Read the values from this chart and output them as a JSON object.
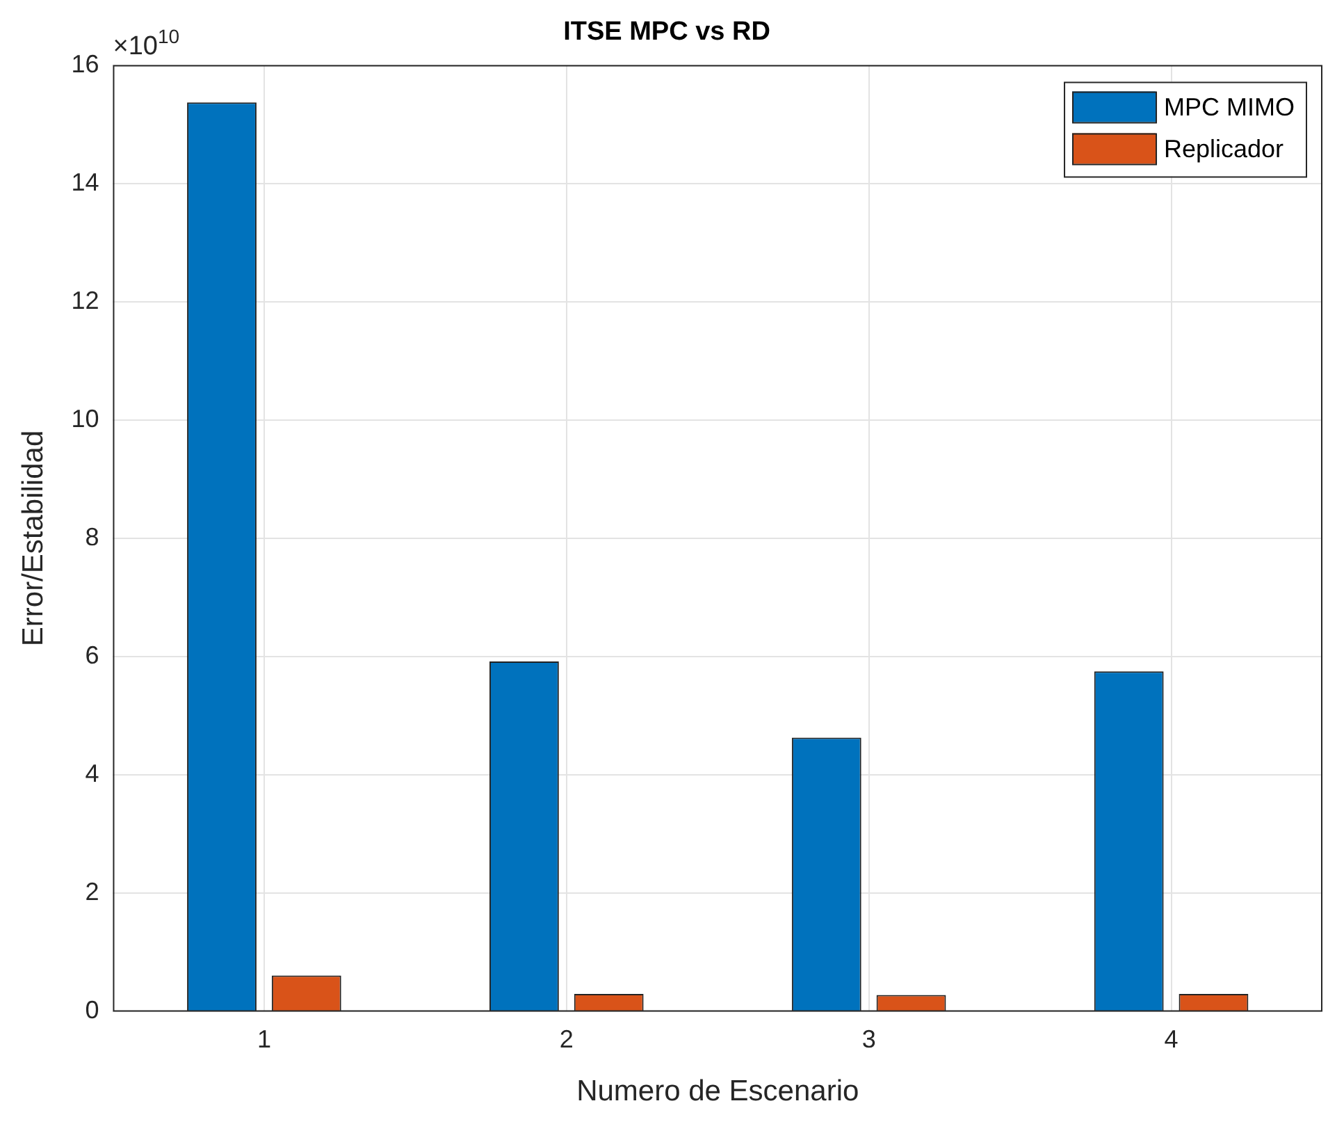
{
  "chart_data": {
    "type": "bar",
    "title": "ITSE MPC vs RD",
    "xlabel": "Numero de Escenario",
    "ylabel": "Error/Estabilidad",
    "categories": [
      "1",
      "2",
      "3",
      "4"
    ],
    "series": [
      {
        "name": "MPC MIMO",
        "color": "#0072bd",
        "values": [
          15.37,
          5.92,
          4.63,
          5.75
        ]
      },
      {
        "name": "Replicador",
        "color": "#d95319",
        "values": [
          0.61,
          0.3,
          0.28,
          0.3
        ]
      }
    ],
    "ylim": [
      0,
      16
    ],
    "yticks": [
      0,
      2,
      4,
      6,
      8,
      10,
      12,
      14,
      16
    ],
    "annotations": [
      "×10$^{10}$"
    ],
    "grid": true,
    "legend": "top right"
  }
}
